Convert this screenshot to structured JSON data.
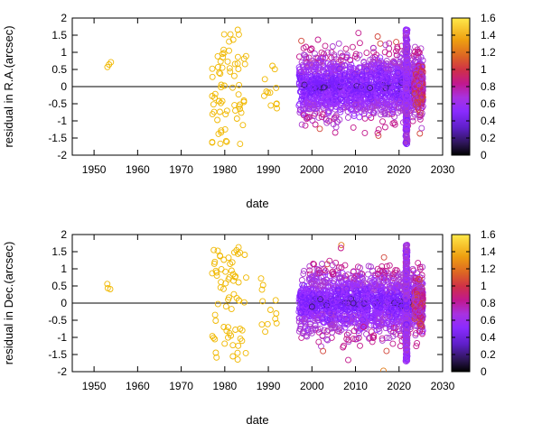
{
  "chart_data": [
    {
      "type": "scatter",
      "xlabel": "date",
      "ylabel": "residual in R.A.(arcsec)",
      "xlim": [
        1945,
        2030
      ],
      "ylim": [
        -2,
        2
      ],
      "xticks": [
        1950,
        1960,
        1970,
        1980,
        1990,
        2000,
        2010,
        2020,
        2030
      ],
      "yticks": [
        -2,
        -1.5,
        -1,
        -0.5,
        0,
        0.5,
        1,
        1.5,
        2
      ],
      "zero_line": true,
      "grid": false,
      "marker": "open-circle",
      "colorbar": {
        "range": [
          0,
          1.6
        ],
        "ticks": [
          0,
          0.2,
          0.4,
          0.6,
          0.8,
          1,
          1.2,
          1.4,
          1.6
        ],
        "position": "right"
      },
      "colormap": [
        "#000000",
        "#3a1c6e",
        "#7b1fff",
        "#9b30ff",
        "#a93ad0",
        "#c2188c",
        "#d2453a",
        "#e07a1a",
        "#f0b800",
        "#ffe14a"
      ],
      "groups": [
        {
          "era": "1953",
          "x_range": [
            1953,
            1954
          ],
          "y_spread": 0.1,
          "center": 0.65,
          "color_value": 1.5
        },
        {
          "era": "1977-1985",
          "x_range": [
            1977,
            1985
          ],
          "y_spread": 1.2,
          "center": 0.0,
          "color_value": 1.5
        },
        {
          "era": "1988-1992",
          "x_range": [
            1988,
            1992
          ],
          "y_spread": 0.5,
          "center": 0.0,
          "color_value": 1.5
        },
        {
          "era": "1997-2025",
          "x_range": [
            1997,
            2025.5
          ],
          "y_spread": 0.7,
          "center": 0.0,
          "color_value": 0.6
        },
        {
          "era": "2021 dense column",
          "x_range": [
            2021.5,
            2021.9
          ],
          "y_spread": 1.7,
          "center": 0.0,
          "color_value": 0.5
        },
        {
          "era": "2024-2025 dense",
          "x_range": [
            2023.5,
            2025.5
          ],
          "y_spread": 0.4,
          "center": 0.0,
          "color_value": 0.9
        }
      ]
    },
    {
      "type": "scatter",
      "xlabel": "date",
      "ylabel": "residual in Dec.(arcsec)",
      "xlim": [
        1945,
        2030
      ],
      "ylim": [
        -2,
        2
      ],
      "xticks": [
        1950,
        1960,
        1970,
        1980,
        1990,
        2000,
        2010,
        2020,
        2030
      ],
      "yticks": [
        -2,
        -1.5,
        -1,
        -0.5,
        0,
        0.5,
        1,
        1.5,
        2
      ],
      "zero_line": true,
      "grid": false,
      "marker": "open-circle",
      "colorbar": {
        "range": [
          0,
          1.6
        ],
        "ticks": [
          0,
          0.2,
          0.4,
          0.6,
          0.8,
          1,
          1.2,
          1.4,
          1.6
        ],
        "position": "right"
      },
      "colormap": [
        "#000000",
        "#3a1c6e",
        "#7b1fff",
        "#9b30ff",
        "#a93ad0",
        "#c2188c",
        "#d2453a",
        "#e07a1a",
        "#f0b800",
        "#ffe14a"
      ],
      "groups": [
        {
          "era": "1953",
          "x_range": [
            1953,
            1954
          ],
          "y_spread": 0.1,
          "center": 0.45,
          "color_value": 1.5
        },
        {
          "era": "1977-1985",
          "x_range": [
            1977,
            1985
          ],
          "y_spread": 1.2,
          "center": 0.0,
          "color_value": 1.5
        },
        {
          "era": "1988-1992",
          "x_range": [
            1988,
            1992
          ],
          "y_spread": 0.6,
          "center": 0.0,
          "color_value": 1.5
        },
        {
          "era": "1997-2025",
          "x_range": [
            1997,
            2025.5
          ],
          "y_spread": 0.7,
          "center": 0.0,
          "color_value": 0.6
        },
        {
          "era": "2021 dense column",
          "x_range": [
            2021.5,
            2021.9
          ],
          "y_spread": 1.7,
          "center": 0.0,
          "color_value": 0.5
        },
        {
          "era": "2024-2025 dense",
          "x_range": [
            2023.5,
            2025.5
          ],
          "y_spread": 0.4,
          "center": 0.0,
          "color_value": 0.9
        }
      ]
    }
  ]
}
